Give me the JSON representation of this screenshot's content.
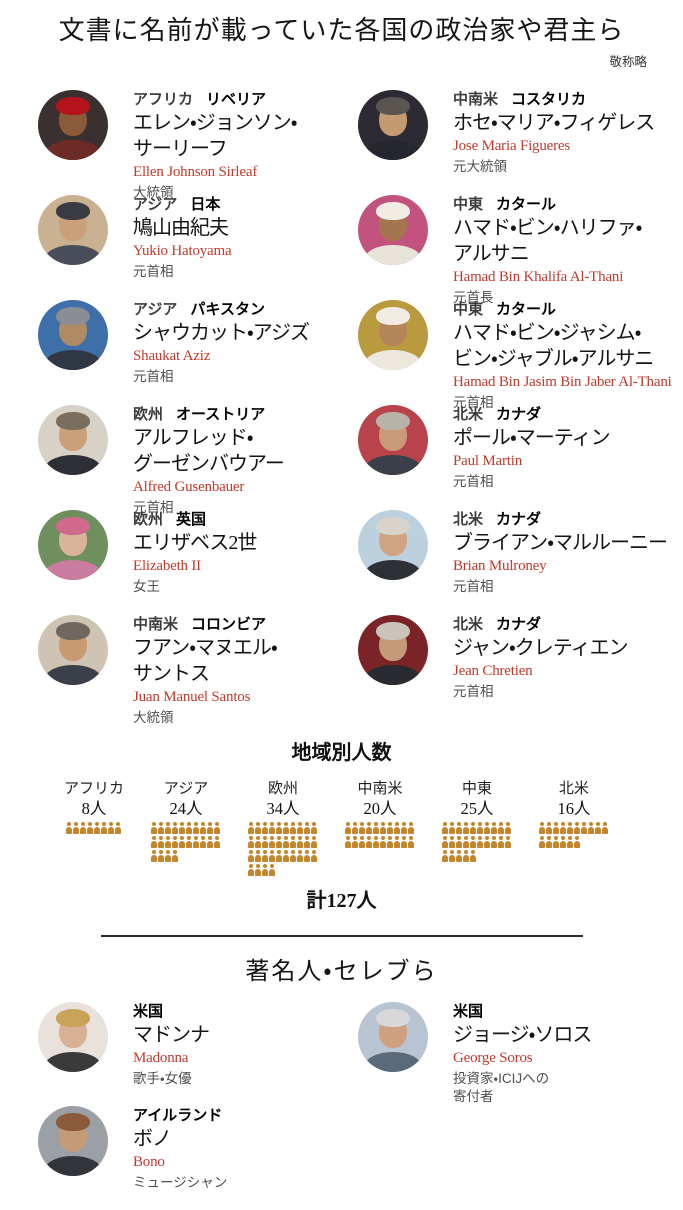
{
  "page": {
    "title": "文書に名前が載っていた各国の政治家や君主ら",
    "subtitle": "敬称略"
  },
  "politicians": {
    "left": [
      {
        "region": "アフリカ",
        "country": "リベリア",
        "name_lines": [
          "エレン・ジョンソン・",
          "サーリーフ"
        ],
        "roman": "Ellen Johnson Sirleaf",
        "title_lines": [
          "大統領"
        ],
        "avatar": {
          "bg": "#3a3030",
          "hair": "#b5121b",
          "skin": "#8a5a3b",
          "suit": "#6e2a26"
        }
      },
      {
        "region": "アジア",
        "country": "日本",
        "name_lines": [
          "鳩山由紀夫"
        ],
        "roman": "Yukio Hatoyama",
        "title_lines": [
          "元首相"
        ],
        "avatar": {
          "bg": "#c9b191",
          "hair": "#3a3a42",
          "skin": "#caa07a",
          "suit": "#4a4e5a"
        }
      },
      {
        "region": "アジア",
        "country": "パキスタン",
        "name_lines": [
          "シャウカット・アジズ"
        ],
        "roman": "Shaukat Aziz",
        "title_lines": [
          "元首相"
        ],
        "avatar": {
          "bg": "#3f6fa8",
          "hair": "#8a8d93",
          "skin": "#b08a62",
          "suit": "#2f3744"
        }
      },
      {
        "region": "欧州",
        "country": "オーストリア",
        "name_lines": [
          "アルフレッド・",
          "グーゼンバウアー"
        ],
        "roman": "Alfred Gusenbauer",
        "title_lines": [
          "元首相"
        ],
        "avatar": {
          "bg": "#d8d2c6",
          "hair": "#7a6f5f",
          "skin": "#caa07a",
          "suit": "#2e2e36"
        }
      },
      {
        "region": "欧州",
        "country": "英国",
        "name_lines": [
          "エリザベス2世"
        ],
        "roman": "Elizabeth II",
        "title_lines": [
          "女王"
        ],
        "avatar": {
          "bg": "#6f8f5f",
          "hair": "#d06a8c",
          "skin": "#d8b49a",
          "suit": "#c97ca0"
        }
      },
      {
        "region": "中南米",
        "country": "コロンビア",
        "name_lines": [
          "フアン・マヌエル・",
          "サントス"
        ],
        "roman": "Juan Manuel Santos",
        "title_lines": [
          "大統領"
        ],
        "avatar": {
          "bg": "#cfc4b4",
          "hair": "#6f6760",
          "skin": "#c89a72",
          "suit": "#3a3f4a"
        }
      }
    ],
    "right": [
      {
        "region": "中南米",
        "country": "コスタリカ",
        "name_lines": [
          "ホセ・マリア・フィゲレス"
        ],
        "roman": "Jose Maria Figueres",
        "title_lines": [
          "元大統領"
        ],
        "avatar": {
          "bg": "#2e2a33",
          "hair": "#5a5550",
          "skin": "#c49a70",
          "suit": "#26262e"
        }
      },
      {
        "region": "中東",
        "country": "カタール",
        "name_lines": [
          "ハマド・ビン・ハリファ・",
          "アルサニ"
        ],
        "roman": "Hamad Bin Khalifa Al-Thani",
        "title_lines": [
          "元首長"
        ],
        "avatar": {
          "bg": "#c2527e",
          "hair": "#f0ece4",
          "skin": "#a5754f",
          "suit": "#e8e4da"
        }
      },
      {
        "region": "中東",
        "country": "カタール",
        "name_lines": [
          "ハマド・ビン・ジャシム・",
          "ビン・ジャブル・アルサニ"
        ],
        "roman": "Hamad Bin Jasim Bin Jaber Al-Thani",
        "title_lines": [
          "元首相"
        ],
        "avatar": {
          "bg": "#b99a3e",
          "hair": "#f0ece4",
          "skin": "#b5855a",
          "suit": "#ece8de"
        }
      },
      {
        "region": "北米",
        "country": "カナダ",
        "name_lines": [
          "ポール・マーティン"
        ],
        "roman": "Paul Martin",
        "title_lines": [
          "元首相"
        ],
        "avatar": {
          "bg": "#b8434a",
          "hair": "#b9b2a8",
          "skin": "#c99a78",
          "suit": "#3a3f4a"
        }
      },
      {
        "region": "北米",
        "country": "カナダ",
        "name_lines": [
          "ブライアン・マルルーニー"
        ],
        "roman": "Brian Mulroney",
        "title_lines": [
          "元首相"
        ],
        "avatar": {
          "bg": "#bcd0de",
          "hair": "#d8d4cc",
          "skin": "#d0a482",
          "suit": "#2e3038"
        }
      },
      {
        "region": "北米",
        "country": "カナダ",
        "name_lines": [
          "ジャン・クレティエン"
        ],
        "roman": "Jean Chretien",
        "title_lines": [
          "元首相"
        ],
        "avatar": {
          "bg": "#7a2428",
          "hair": "#cac4ba",
          "skin": "#c59a78",
          "suit": "#2a2a32"
        }
      }
    ]
  },
  "chart_data": {
    "type": "pictogram",
    "title": "地域別人数",
    "categories": [
      "アフリカ",
      "アジア",
      "欧州",
      "中南米",
      "中東",
      "北米"
    ],
    "values": [
      8,
      24,
      34,
      20,
      25,
      16
    ],
    "unit": "人",
    "icons_per_row": 10,
    "icon_color": "#c5862b",
    "total_label": "計127人"
  },
  "celebrities": {
    "section_title": "著名人・セレブら",
    "items": [
      {
        "country": "米国",
        "name_lines": [
          "マドンナ"
        ],
        "roman": "Madonna",
        "title_lines": [
          "歌手・女優"
        ],
        "avatar": {
          "bg": "#e8e2da",
          "hair": "#c9a35a",
          "skin": "#d8b094",
          "suit": "#3a3a3a"
        }
      },
      {
        "country": "米国",
        "name_lines": [
          "ジョージ・ソロス"
        ],
        "roman": "George Soros",
        "title_lines": [
          "投資家・ICIJへの",
          "寄付者"
        ],
        "avatar": {
          "bg": "#b8c4d2",
          "hair": "#d8d8d8",
          "skin": "#cfa080",
          "suit": "#5a6a7a"
        }
      },
      {
        "country": "アイルランド",
        "name_lines": [
          "ボノ"
        ],
        "roman": "Bono",
        "title_lines": [
          "ミュージシャン"
        ],
        "avatar": {
          "bg": "#9aa0a6",
          "hair": "#8a5a3a",
          "skin": "#c59a78",
          "suit": "#32343a"
        }
      }
    ]
  }
}
